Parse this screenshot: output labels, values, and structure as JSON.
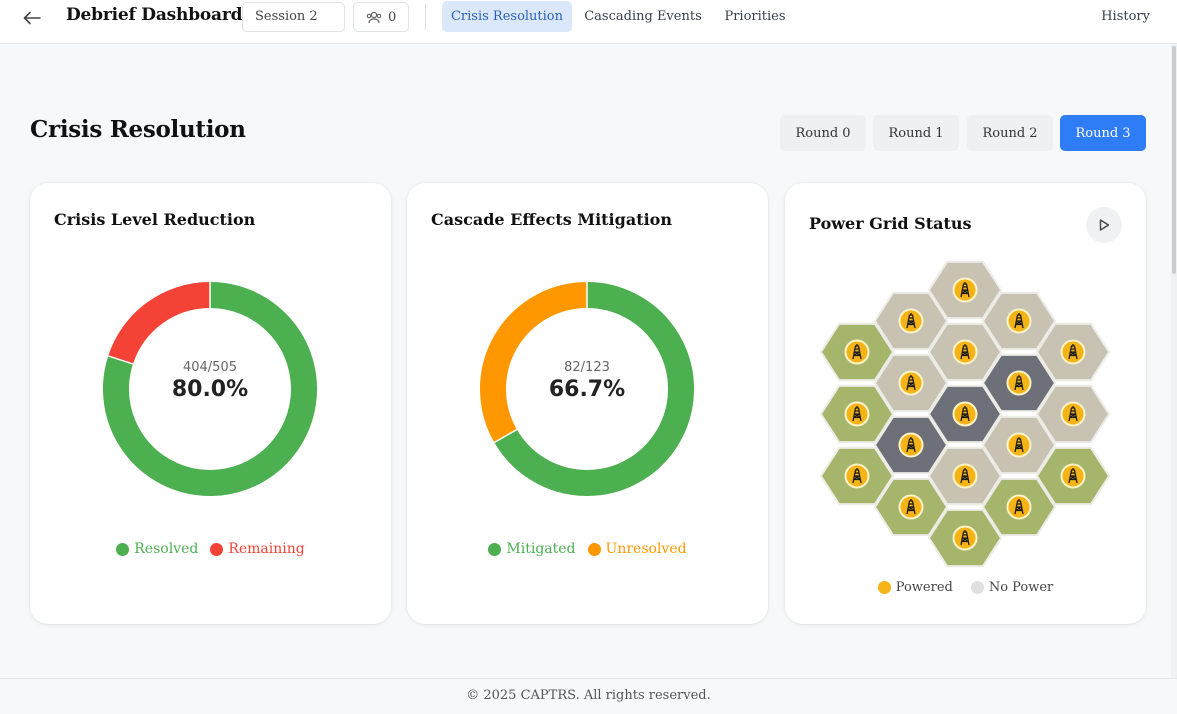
{
  "header": {
    "title": "Debrief Dashboard",
    "session_label": "Session 2",
    "users_count": "0",
    "tabs": [
      {
        "label": "Crisis Resolution",
        "active": true
      },
      {
        "label": "Cascading Events",
        "active": false
      },
      {
        "label": "Priorities",
        "active": false
      }
    ],
    "history_label": "History"
  },
  "page": {
    "title": "Crisis Resolution",
    "rounds": [
      {
        "label": "Round 0",
        "active": false
      },
      {
        "label": "Round 1",
        "active": false
      },
      {
        "label": "Round 2",
        "active": false
      },
      {
        "label": "Round 3",
        "active": true
      }
    ]
  },
  "crisis_card": {
    "title": "Crisis Level Reduction",
    "fraction": "404/505",
    "percent": "80.0%",
    "legend": [
      {
        "label": "Resolved",
        "color": "#4caf50"
      },
      {
        "label": "Remaining",
        "color": "#f44336"
      }
    ]
  },
  "cascade_card": {
    "title": "Cascade Effects Mitigation",
    "fraction": "82/123",
    "percent": "66.7%",
    "legend": [
      {
        "label": "Mitigated",
        "color": "#4caf50"
      },
      {
        "label": "Unresolved",
        "color": "#ff9800"
      }
    ]
  },
  "grid_card": {
    "title": "Power Grid Status",
    "legend": [
      {
        "label": "Powered",
        "color": "#f5b316"
      },
      {
        "label": "No Power",
        "color": "#e0e0e0"
      }
    ],
    "tile_colors": {
      "green": "#a5b56c",
      "beige": "#c8c2b2",
      "dark": "#6d7079"
    }
  },
  "chart_data": [
    {
      "type": "pie",
      "title": "Crisis Level Reduction",
      "categories": [
        "Resolved",
        "Remaining"
      ],
      "values": [
        404,
        101
      ],
      "colors": [
        "#4caf50",
        "#f44336"
      ]
    },
    {
      "type": "pie",
      "title": "Cascade Effects Mitigation",
      "categories": [
        "Mitigated",
        "Unresolved"
      ],
      "values": [
        82,
        41
      ],
      "colors": [
        "#4caf50",
        "#ff9800"
      ]
    }
  ],
  "footer": {
    "text": "© 2025 CAPTRS. All rights reserved."
  }
}
